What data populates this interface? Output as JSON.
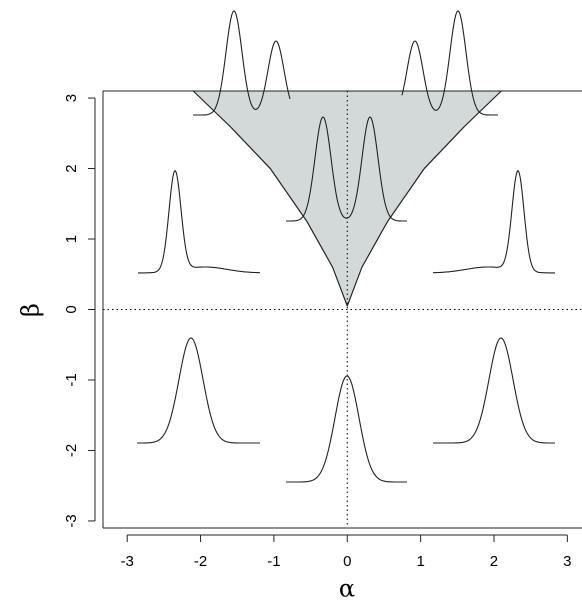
{
  "chart_data": {
    "type": "area",
    "x_label": "α",
    "y_label": "β",
    "xlim": [
      -3.33,
      3.2
    ],
    "ylim": [
      -3.1,
      3.1
    ],
    "xticks": [
      -3,
      -2,
      -1,
      0,
      1,
      2,
      3
    ],
    "yticks": [
      -3,
      -2,
      -1,
      0,
      1,
      2,
      3
    ],
    "reference_lines": {
      "x": 0,
      "y": 0
    },
    "series": [
      {
        "color": "#d3d9d9",
        "x": [
          -2.1,
          -1.6,
          -1.05,
          -0.55,
          -0.2,
          0,
          0.2,
          0.55,
          1.05,
          1.6,
          2.1
        ],
        "values": [
          3.1,
          2.6,
          2.0,
          1.25,
          0.6,
          0.05,
          0.6,
          1.25,
          2.0,
          2.6,
          3.1
        ]
      }
    ]
  }
}
